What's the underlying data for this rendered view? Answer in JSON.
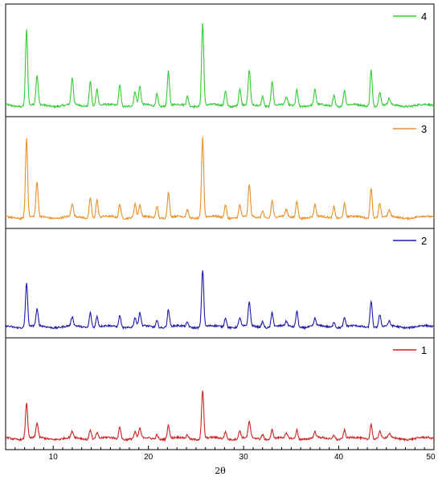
{
  "chart_data": {
    "type": "line",
    "xlabel": "2θ",
    "xlim": [
      5,
      50
    ],
    "x_ticks": [
      10,
      20,
      30,
      40,
      50
    ],
    "x_tick_labels": [
      "10",
      "20",
      "30",
      "40",
      "50"
    ],
    "panels": [
      {
        "series_name": "4",
        "color": "#33cc33",
        "peaks": [
          [
            7.2,
            1.0
          ],
          [
            8.3,
            0.38
          ],
          [
            12.0,
            0.35
          ],
          [
            13.9,
            0.33
          ],
          [
            14.6,
            0.22
          ],
          [
            17.0,
            0.28
          ],
          [
            18.6,
            0.18
          ],
          [
            19.1,
            0.24
          ],
          [
            20.9,
            0.16
          ],
          [
            22.1,
            0.45
          ],
          [
            24.1,
            0.12
          ],
          [
            25.7,
            1.08
          ],
          [
            28.1,
            0.2
          ],
          [
            29.6,
            0.22
          ],
          [
            30.6,
            0.45
          ],
          [
            32.0,
            0.13
          ],
          [
            33.0,
            0.33
          ],
          [
            34.5,
            0.1
          ],
          [
            35.6,
            0.22
          ],
          [
            37.5,
            0.2
          ],
          [
            39.5,
            0.14
          ],
          [
            40.6,
            0.2
          ],
          [
            43.4,
            0.48
          ],
          [
            44.3,
            0.18
          ],
          [
            45.3,
            0.08
          ]
        ]
      },
      {
        "series_name": "3",
        "color": "#e8902a",
        "peaks": [
          [
            7.2,
            1.05
          ],
          [
            8.3,
            0.45
          ],
          [
            12.0,
            0.17
          ],
          [
            13.9,
            0.27
          ],
          [
            14.6,
            0.23
          ],
          [
            17.0,
            0.18
          ],
          [
            18.6,
            0.18
          ],
          [
            19.1,
            0.15
          ],
          [
            20.9,
            0.16
          ],
          [
            22.1,
            0.33
          ],
          [
            24.1,
            0.1
          ],
          [
            25.7,
            1.05
          ],
          [
            28.1,
            0.17
          ],
          [
            29.6,
            0.16
          ],
          [
            30.6,
            0.42
          ],
          [
            32.0,
            0.1
          ],
          [
            33.0,
            0.23
          ],
          [
            34.5,
            0.09
          ],
          [
            35.6,
            0.23
          ],
          [
            37.5,
            0.16
          ],
          [
            39.5,
            0.15
          ],
          [
            40.6,
            0.18
          ],
          [
            43.4,
            0.4
          ],
          [
            44.3,
            0.18
          ],
          [
            45.3,
            0.08
          ]
        ]
      },
      {
        "series_name": "2",
        "color": "#1a1aaa",
        "peaks": [
          [
            7.2,
            0.6
          ],
          [
            8.3,
            0.22
          ],
          [
            12.0,
            0.12
          ],
          [
            13.9,
            0.2
          ],
          [
            14.6,
            0.14
          ],
          [
            17.0,
            0.16
          ],
          [
            18.6,
            0.12
          ],
          [
            19.1,
            0.18
          ],
          [
            20.9,
            0.09
          ],
          [
            22.1,
            0.23
          ],
          [
            24.1,
            0.06
          ],
          [
            25.7,
            0.77
          ],
          [
            28.1,
            0.13
          ],
          [
            29.6,
            0.12
          ],
          [
            30.6,
            0.32
          ],
          [
            32.0,
            0.08
          ],
          [
            33.0,
            0.2
          ],
          [
            34.5,
            0.06
          ],
          [
            35.6,
            0.22
          ],
          [
            37.5,
            0.1
          ],
          [
            39.5,
            0.08
          ],
          [
            40.6,
            0.12
          ],
          [
            43.4,
            0.36
          ],
          [
            44.3,
            0.16
          ],
          [
            45.3,
            0.06
          ]
        ]
      },
      {
        "series_name": "1",
        "color": "#cc2222",
        "peaks": [
          [
            7.2,
            0.48
          ],
          [
            8.3,
            0.19
          ],
          [
            12.0,
            0.08
          ],
          [
            13.9,
            0.13
          ],
          [
            14.6,
            0.08
          ],
          [
            17.0,
            0.16
          ],
          [
            18.6,
            0.08
          ],
          [
            19.1,
            0.12
          ],
          [
            20.9,
            0.06
          ],
          [
            22.1,
            0.18
          ],
          [
            24.1,
            0.05
          ],
          [
            25.7,
            0.63
          ],
          [
            28.1,
            0.1
          ],
          [
            29.6,
            0.1
          ],
          [
            30.6,
            0.21
          ],
          [
            32.0,
            0.06
          ],
          [
            33.0,
            0.12
          ],
          [
            34.5,
            0.05
          ],
          [
            35.6,
            0.12
          ],
          [
            37.5,
            0.08
          ],
          [
            39.5,
            0.06
          ],
          [
            40.6,
            0.11
          ],
          [
            43.4,
            0.2
          ],
          [
            44.3,
            0.1
          ],
          [
            45.3,
            0.05
          ]
        ]
      }
    ]
  }
}
